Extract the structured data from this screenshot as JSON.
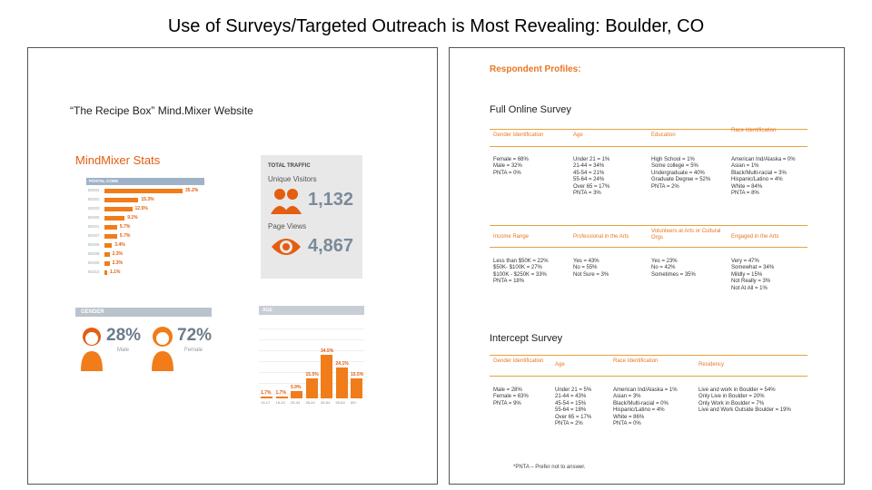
{
  "slide": {
    "title": "Use of Surveys/Targeted Outreach is Most Revealing:   Boulder, CO"
  },
  "left": {
    "website_title": "“The Recipe Box” Mind.Mixer Website",
    "stats_title": "MindMixer Stats",
    "postal_header": "POSTAL CODE",
    "postal": {
      "codes": [
        "80304",
        "80302",
        "80303",
        "80305",
        "80301",
        "80307",
        "80306",
        "80308",
        "80309",
        "80310"
      ],
      "values": [
        "35.2%",
        "15.3%",
        "12.5%",
        "9.1%",
        "5.7%",
        "5.7%",
        "3.4%",
        "2.3%",
        "2.3%",
        "1.1%"
      ],
      "pct": [
        35.2,
        15.3,
        12.5,
        9.1,
        5.7,
        5.7,
        3.4,
        2.3,
        2.3,
        1.1
      ]
    },
    "traffic": {
      "header": "TOTAL TRAFFIC",
      "unique_label": "Unique Visitors",
      "unique_value": "1,132",
      "views_label": "Page Views",
      "views_value": "4,867"
    },
    "gender": {
      "header": "GENDER",
      "male_pct": "28%",
      "male_label": "Male",
      "female_pct": "72%",
      "female_label": "Female"
    },
    "age": {
      "header": "AGE",
      "categories": [
        "13-17",
        "18-24",
        "25-34",
        "35-44",
        "45-54",
        "55-64",
        "65+"
      ],
      "values": [
        "1.7%",
        "1.7%",
        "5.9%",
        "15.5%",
        "34.5%",
        "24.1%",
        "15.5%"
      ],
      "pct": [
        1.7,
        1.7,
        5.9,
        15.5,
        34.5,
        24.1,
        15.5
      ]
    }
  },
  "right": {
    "profiles_title": "Respondent Profiles:",
    "online_title": "Full Online Survey",
    "online": {
      "headers1": [
        "Gender Identification",
        "Age",
        "Education",
        "Race Identification"
      ],
      "col_gender": [
        "Female = 68%",
        "Male = 32%",
        "PNTA = 0%"
      ],
      "col_age": [
        "Under 21 = 1%",
        "21-44 = 34%",
        "45-54 = 21%",
        "55-64 = 24%",
        "Over 65 = 17%",
        "PNTA = 3%"
      ],
      "col_education": [
        "High School = 1%",
        "Some college = 5%",
        "Undergraduate = 40%",
        "Graduate Degree = 52%",
        "PNTA = 2%"
      ],
      "col_race": [
        "American Ind/Alaska = 0%",
        "Asian = 1%",
        "Black/Multi-racial = 3%",
        "Hispanic/Latino = 4%",
        "White = 84%",
        "PNTA = 8%"
      ],
      "headers2": [
        "Income Range",
        "Professional in the Arts",
        "Volunteers at Arts or Cultural Orgs",
        "Engaged in the Arts"
      ],
      "col_income": [
        "Less than $50K = 22%",
        "$50K- $100K = 27%",
        "$100K - $250K = 33%",
        "PNTA = 18%"
      ],
      "col_prof": [
        "Yes = 43%",
        "No = 55%",
        "Not Sure = 3%"
      ],
      "col_vol": [
        "Yes = 23%",
        "No = 42%",
        "Sometimes = 35%"
      ],
      "col_engaged": [
        "Very = 47%",
        "Somewhat = 34%",
        "Mildly = 15%",
        "Not Really = 3%",
        "Not At All = 1%"
      ]
    },
    "intercept_title": "Intercept Survey",
    "intercept": {
      "headers": [
        "Gender Identification",
        "Age",
        "Race Identification",
        "Residency"
      ],
      "col_gender": [
        "Male = 28%",
        "Female = 63%",
        "PNTA = 9%"
      ],
      "col_age": [
        "Under 21 = 5%",
        "21-44 = 43%",
        "45-54 = 15%",
        "55-64 = 18%",
        "Over 65 = 17%",
        "PNTA = 2%"
      ],
      "col_race": [
        "American Ind/Alaska = 1%",
        "Asian = 3%",
        "Black/Multi-racial = 0%",
        "Hispanic/Latino = 4%",
        "White = 86%",
        "PNTA = 0%"
      ],
      "col_residency": [
        "Live and work in Boulder = 54%",
        "Only Live in Boulder = 20%",
        "Only Work in Boulder = 7%",
        "Live and Work Outside Boulder = 19%"
      ]
    },
    "footnote": "*PNTA – Prefer not to answer."
  }
}
